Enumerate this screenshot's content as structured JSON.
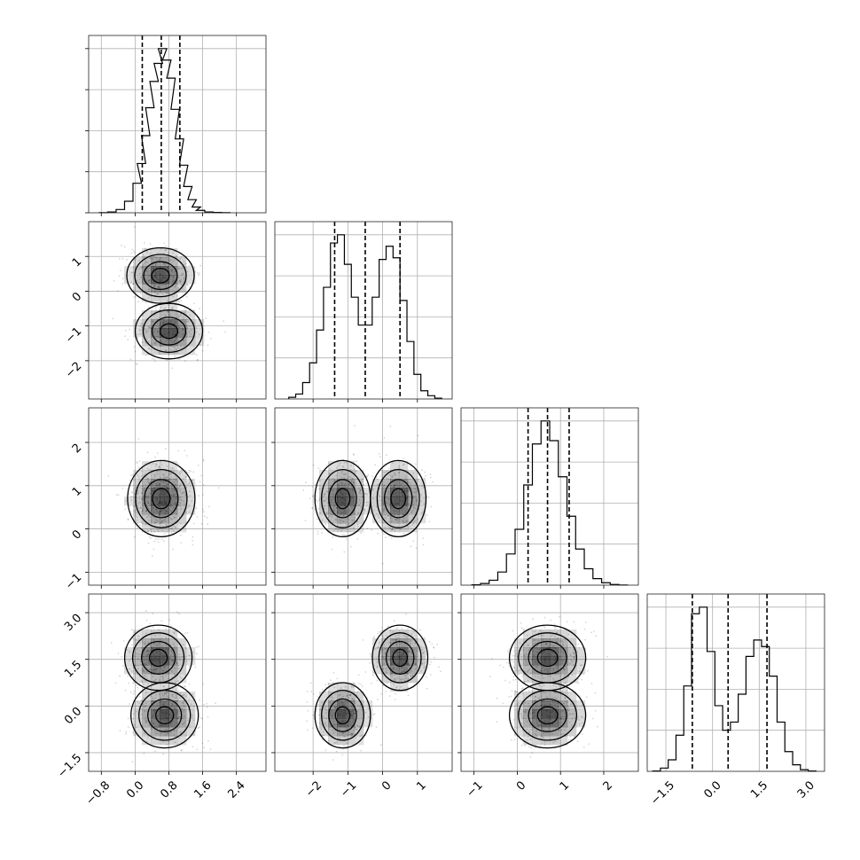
{
  "chart_data": {
    "type": "corner",
    "n_params": 4,
    "grid": true,
    "params": [
      {
        "range": [
          -1.1,
          3.1
        ],
        "ticks": [
          -0.8,
          0.0,
          0.8,
          1.6,
          2.4
        ],
        "tick_labels": [
          "−0.8",
          "0.0",
          "0.8",
          "1.6",
          "2.4"
        ],
        "modes": [
          {
            "mu": 0.6,
            "sd": 0.38,
            "w": 1.0
          }
        ],
        "quantiles": [
          0.17,
          0.62,
          1.06
        ],
        "hist_x": [
          -0.75,
          -0.55,
          -0.35,
          -0.15,
          0.05,
          0.15,
          0.25,
          0.35,
          0.45,
          0.55,
          0.65,
          0.75,
          0.85,
          0.95,
          1.05,
          1.15,
          1.25,
          1.35,
          1.45,
          1.55,
          1.75,
          1.95,
          2.15
        ],
        "hist_y": [
          0.001,
          0.005,
          0.02,
          0.07,
          0.18,
          0.3,
          0.47,
          0.64,
          0.8,
          0.91,
          1.0,
          0.93,
          0.82,
          0.63,
          0.45,
          0.29,
          0.16,
          0.08,
          0.035,
          0.015,
          0.005,
          0.002,
          0.001
        ]
      },
      {
        "range": [
          -3.1,
          2.0
        ],
        "ticks": [
          -2,
          -1,
          0,
          1
        ],
        "tick_labels": [
          "−2",
          "−1",
          "0",
          "1"
        ],
        "modes": [
          {
            "mu": -1.15,
            "sd": 0.38,
            "w": 0.55
          },
          {
            "mu": 0.5,
            "sd": 0.38,
            "w": 0.45
          }
        ],
        "quantiles": [
          -1.38,
          -0.5,
          0.5
        ],
        "hist_x": [
          -2.6,
          -2.4,
          -2.2,
          -2.0,
          -1.8,
          -1.6,
          -1.4,
          -1.2,
          -1.0,
          -0.8,
          -0.6,
          -0.4,
          -0.2,
          0.0,
          0.2,
          0.4,
          0.6,
          0.8,
          1.0,
          1.2,
          1.4,
          1.6
        ],
        "hist_y": [
          0.01,
          0.03,
          0.1,
          0.22,
          0.42,
          0.68,
          0.95,
          1.0,
          0.82,
          0.62,
          0.45,
          0.45,
          0.62,
          0.85,
          0.93,
          0.86,
          0.6,
          0.35,
          0.15,
          0.05,
          0.02,
          0.005
        ]
      },
      {
        "range": [
          -1.3,
          2.8
        ],
        "ticks": [
          -1,
          0,
          1,
          2
        ],
        "tick_labels": [
          "−1",
          "0",
          "1",
          "2"
        ],
        "modes": [
          {
            "mu": 0.7,
            "sd": 0.42,
            "w": 1.0
          }
        ],
        "quantiles": [
          0.25,
          0.7,
          1.2
        ],
        "hist_x": [
          -0.95,
          -0.75,
          -0.55,
          -0.35,
          -0.15,
          0.05,
          0.25,
          0.45,
          0.65,
          0.85,
          1.05,
          1.25,
          1.45,
          1.65,
          1.85,
          2.05,
          2.25,
          2.45
        ],
        "hist_y": [
          0.002,
          0.01,
          0.03,
          0.08,
          0.19,
          0.34,
          0.61,
          0.86,
          1.0,
          0.88,
          0.66,
          0.42,
          0.22,
          0.1,
          0.04,
          0.015,
          0.004,
          0.001
        ]
      },
      {
        "range": [
          -2.1,
          3.6
        ],
        "ticks": [
          -1.5,
          0.0,
          1.5,
          3.0
        ],
        "tick_labels": [
          "−1.5",
          "0.0",
          "1.5",
          "3.0"
        ],
        "modes": [
          {
            "mu": -0.3,
            "sd": 0.5,
            "w": 0.55
          },
          {
            "mu": 1.6,
            "sd": 0.5,
            "w": 0.45
          }
        ],
        "quantiles": [
          -0.65,
          0.5,
          1.75
        ],
        "hist_x": [
          -1.8,
          -1.55,
          -1.3,
          -1.05,
          -0.8,
          -0.55,
          -0.3,
          -0.05,
          0.2,
          0.45,
          0.7,
          0.95,
          1.2,
          1.45,
          1.7,
          1.95,
          2.2,
          2.45,
          2.7,
          2.95,
          3.2
        ],
        "hist_y": [
          0.002,
          0.02,
          0.07,
          0.22,
          0.52,
          0.96,
          1.0,
          0.73,
          0.4,
          0.25,
          0.3,
          0.47,
          0.7,
          0.8,
          0.76,
          0.58,
          0.3,
          0.12,
          0.04,
          0.01,
          0.002
        ]
      }
    ],
    "pairs": [
      {
        "row": 1,
        "col": 0,
        "centers": [
          [
            0.6,
            0.45
          ],
          [
            0.8,
            -1.15
          ]
        ]
      },
      {
        "row": 2,
        "col": 0,
        "centers": [
          [
            0.62,
            0.7
          ]
        ]
      },
      {
        "row": 2,
        "col": 1,
        "centers": [
          [
            -1.15,
            0.7
          ],
          [
            0.45,
            0.7
          ]
        ]
      },
      {
        "row": 3,
        "col": 0,
        "centers": [
          [
            0.55,
            1.55
          ],
          [
            0.7,
            -0.3
          ]
        ]
      },
      {
        "row": 3,
        "col": 1,
        "centers": [
          [
            -1.15,
            -0.3
          ],
          [
            0.5,
            1.55
          ]
        ]
      },
      {
        "row": 3,
        "col": 2,
        "centers": [
          [
            0.7,
            1.55
          ],
          [
            0.7,
            -0.3
          ]
        ]
      }
    ]
  }
}
